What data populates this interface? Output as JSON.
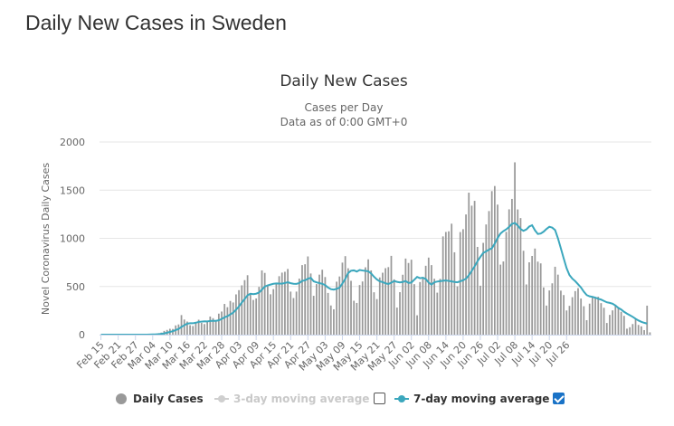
{
  "page": {
    "title": "Daily New Cases in Sweden"
  },
  "legend": {
    "daily": "Daily Cases",
    "three": "3-day moving average",
    "seven": "7-day moving average",
    "three_checked": false,
    "seven_checked": true
  },
  "colors": {
    "bar": "#999999",
    "line": "#3ba7bd",
    "grid": "#e6e6e6",
    "text": "#666666"
  },
  "chart_data": {
    "type": "bar",
    "title": "Daily New Cases",
    "subtitle_1": "Cases per Day",
    "subtitle_2": "Data as of 0:00 GMT+0",
    "ylabel": "Novel Coronavirus Daily Cases",
    "xlabel": "",
    "ylim": [
      0,
      2000
    ],
    "yticks": [
      0,
      500,
      1000,
      1500,
      2000
    ],
    "xtick_labels": [
      "Feb 15",
      "Feb 21",
      "Feb 27",
      "Mar 04",
      "Mar 10",
      "Mar 16",
      "Mar 22",
      "Mar 28",
      "Apr 03",
      "Apr 09",
      "Apr 15",
      "Apr 21",
      "Apr 27",
      "May 03",
      "May 09",
      "May 15",
      "May 21",
      "May 27",
      "Jun 02",
      "Jun 08",
      "Jun 14",
      "Jun 20",
      "Jun 26",
      "Jul 02",
      "Jul 08",
      "Jul 14",
      "Jul 20",
      "Jul 26"
    ],
    "xtick_step_days": 6,
    "grid": true,
    "series": [
      {
        "name": "Daily Cases",
        "kind": "bar",
        "values": [
          1,
          0,
          0,
          0,
          0,
          0,
          0,
          0,
          0,
          0,
          0,
          0,
          1,
          0,
          0,
          1,
          0,
          5,
          6,
          7,
          15,
          21,
          39,
          49,
          61,
          59,
          96,
          106,
          203,
          157,
          136,
          98,
          90,
          120,
          155,
          122,
          110,
          133,
          188,
          171,
          136,
          218,
          240,
          319,
          285,
          350,
          334,
          418,
          462,
          512,
          566,
          617,
          426,
          360,
          376,
          496,
          667,
          641,
          509,
          419,
          473,
          521,
          607,
          644,
          653,
          682,
          447,
          380,
          447,
          582,
          722,
          731,
          812,
          635,
          403,
          525,
          623,
          674,
          598,
          433,
          303,
          263,
          550,
          604,
          748,
          815,
          689,
          559,
          352,
          329,
          515,
          552,
          699,
          782,
          667,
          440,
          369,
          594,
          643,
          690,
          701,
          818,
          574,
          281,
          441,
          622,
          790,
          744,
          778,
          524,
          201,
          546,
          585,
          715,
          800,
          722,
          580,
          436,
          579,
          1020,
          1066,
          1073,
          1152,
          855,
          501,
          1065,
          1095,
          1248,
          1474,
          1339,
          1389,
          911,
          508,
          953,
          1144,
          1283,
          1490,
          1543,
          1350,
          727,
          760,
          1067,
          1301,
          1409,
          1789,
          1300,
          1210,
          871,
          521,
          751,
          817,
          894,
          758,
          740,
          490,
          302,
          459,
          533,
          705,
          623,
          457,
          411,
          251,
          299,
          389,
          452,
          483,
          375,
          295,
          150,
          322,
          386,
          382,
          393,
          327,
          279,
          121,
          205,
          252,
          311,
          277,
          237,
          195,
          62,
          77,
          110,
          160,
          101,
          86,
          47,
          301,
          24
        ]
      },
      {
        "name": "7-day moving average",
        "kind": "line",
        "values": [
          0,
          0,
          0,
          0,
          0,
          0,
          0,
          0,
          0,
          0,
          0,
          0,
          0,
          0,
          0,
          0,
          0,
          1,
          2,
          3,
          5,
          8,
          13,
          20,
          28,
          36,
          48,
          59,
          80,
          98,
          114,
          119,
          118,
          124,
          132,
          135,
          138,
          137,
          142,
          143,
          143,
          149,
          163,
          180,
          192,
          210,
          228,
          259,
          292,
          333,
          370,
          408,
          425,
          420,
          425,
          437,
          467,
          499,
          511,
          520,
          528,
          532,
          530,
          529,
          536,
          544,
          534,
          528,
          527,
          535,
          558,
          564,
          581,
          590,
          554,
          543,
          535,
          528,
          514,
          489,
          472,
          467,
          476,
          488,
          531,
          578,
          639,
          663,
          667,
          655,
          671,
          666,
          662,
          658,
          635,
          601,
          573,
          553,
          546,
          533,
          526,
          539,
          557,
          548,
          542,
          547,
          557,
          537,
          541,
          570,
          599,
          586,
          591,
          578,
          541,
          520,
          544,
          551,
          555,
          560,
          562,
          558,
          553,
          547,
          544,
          554,
          565,
          581,
          617,
          662,
          709,
          762,
          807,
          848,
          865,
          883,
          896,
          945,
          1003,
          1050,
          1075,
          1093,
          1118,
          1150,
          1160,
          1133,
          1096,
          1078,
          1092,
          1122,
          1136,
          1083,
          1045,
          1050,
          1069,
          1097,
          1120,
          1111,
          1086,
          1000,
          897,
          791,
          690,
          619,
          581,
          555,
          523,
          490,
          446,
          411,
          398,
          392,
          384,
          373,
          364,
          350,
          336,
          330,
          321,
          302,
          278,
          261,
          237,
          218,
          202,
          185,
          165,
          147,
          133,
          123,
          115
        ]
      }
    ]
  }
}
